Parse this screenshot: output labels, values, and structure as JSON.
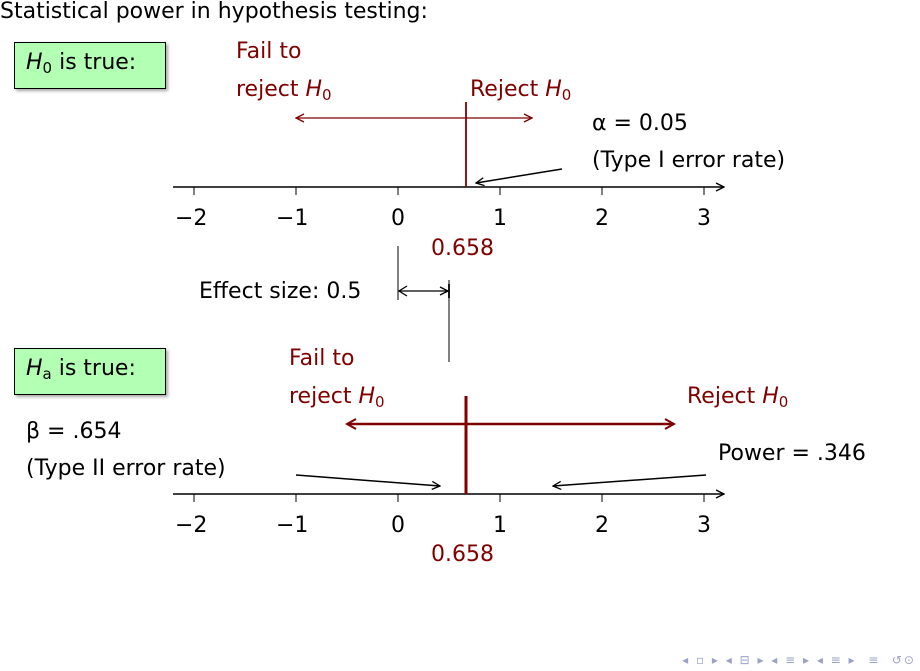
{
  "title": "Statistical power in hypothesis testing:",
  "h0_box": {
    "prefix": "H",
    "sub": "0",
    "suffix": " is true:"
  },
  "ha_box": {
    "prefix": "H",
    "sub": "a",
    "suffix": " is true:"
  },
  "fail_line1": "Fail to",
  "fail_line2_prefix": "reject ",
  "reject_prefix": "Reject ",
  "h_sym": "H",
  "h_sub": "0",
  "alpha_line1": "α = 0.05",
  "alpha_line2": "(Type I error rate)",
  "beta_line1": "β = .654",
  "beta_line2": "(Type II error rate)",
  "power_label": "Power = .346",
  "effect_size_label": "Effect size: 0.5",
  "critical_value": "0.658",
  "axis_ticks": [
    "−2",
    "−1",
    "0",
    "1",
    "2",
    "3"
  ],
  "colors": {
    "accent": "#800000",
    "box_fill": "#b3ffb3"
  }
}
